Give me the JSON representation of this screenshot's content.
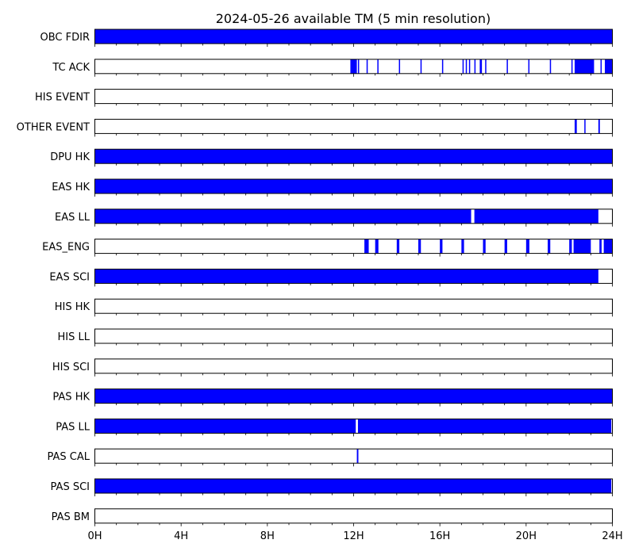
{
  "chart_data": {
    "type": "timeline",
    "title": "2024-05-26 available TM (5 min resolution)",
    "x_unit": "hours",
    "xlim": [
      0,
      24
    ],
    "x_ticks": [
      0,
      4,
      8,
      12,
      16,
      20,
      24
    ],
    "x_tick_labels": [
      "0H",
      "4H",
      "8H",
      "12H",
      "16H",
      "20H",
      "24H"
    ],
    "bar_color": "#0000ff",
    "series": [
      {
        "name": "OBC FDIR",
        "intervals": [
          [
            0,
            24
          ]
        ]
      },
      {
        "name": "TC ACK",
        "intervals": [
          [
            11.85,
            12.15
          ],
          [
            12.2,
            12.25
          ],
          [
            12.6,
            12.65
          ],
          [
            13.1,
            13.15
          ],
          [
            14.1,
            14.15
          ],
          [
            15.1,
            15.15
          ],
          [
            16.1,
            16.15
          ],
          [
            17.05,
            17.1
          ],
          [
            17.2,
            17.25
          ],
          [
            17.35,
            17.4
          ],
          [
            17.6,
            17.65
          ],
          [
            17.85,
            17.95
          ],
          [
            18.1,
            18.15
          ],
          [
            19.1,
            19.15
          ],
          [
            20.1,
            20.15
          ],
          [
            21.1,
            21.15
          ],
          [
            22.1,
            22.15
          ],
          [
            22.25,
            23.15
          ],
          [
            23.45,
            23.5
          ],
          [
            23.65,
            24
          ]
        ]
      },
      {
        "name": "HIS EVENT",
        "intervals": []
      },
      {
        "name": "OTHER EVENT",
        "intervals": [
          [
            22.25,
            22.35
          ],
          [
            22.7,
            22.75
          ],
          [
            23.35,
            23.42
          ]
        ]
      },
      {
        "name": "DPU HK",
        "intervals": [
          [
            0,
            24
          ]
        ]
      },
      {
        "name": "EAS HK",
        "intervals": [
          [
            0,
            24
          ]
        ]
      },
      {
        "name": "EAS LL",
        "intervals": [
          [
            0,
            17.45
          ],
          [
            17.6,
            23.35
          ]
        ]
      },
      {
        "name": "EAS_ENG",
        "intervals": [
          [
            12.5,
            12.7
          ],
          [
            13.0,
            13.15
          ],
          [
            14.0,
            14.12
          ],
          [
            15.0,
            15.12
          ],
          [
            16.0,
            16.12
          ],
          [
            17.0,
            17.12
          ],
          [
            18.0,
            18.12
          ],
          [
            19.0,
            19.12
          ],
          [
            20.0,
            20.15
          ],
          [
            21.0,
            21.12
          ],
          [
            22.0,
            22.12
          ],
          [
            22.2,
            23.0
          ],
          [
            23.4,
            23.5
          ],
          [
            23.6,
            24
          ]
        ]
      },
      {
        "name": "EAS SCI",
        "intervals": [
          [
            0,
            23.35
          ]
        ]
      },
      {
        "name": "HIS HK",
        "intervals": []
      },
      {
        "name": "HIS LL",
        "intervals": []
      },
      {
        "name": "HIS SCI",
        "intervals": []
      },
      {
        "name": "PAS HK",
        "intervals": [
          [
            0,
            24
          ]
        ]
      },
      {
        "name": "PAS LL",
        "intervals": [
          [
            0,
            12.1
          ],
          [
            12.2,
            23.95
          ]
        ]
      },
      {
        "name": "PAS CAL",
        "intervals": [
          [
            12.15,
            12.22
          ]
        ]
      },
      {
        "name": "PAS SCI",
        "intervals": [
          [
            0,
            23.95
          ]
        ]
      },
      {
        "name": "PAS BM",
        "intervals": []
      }
    ]
  }
}
